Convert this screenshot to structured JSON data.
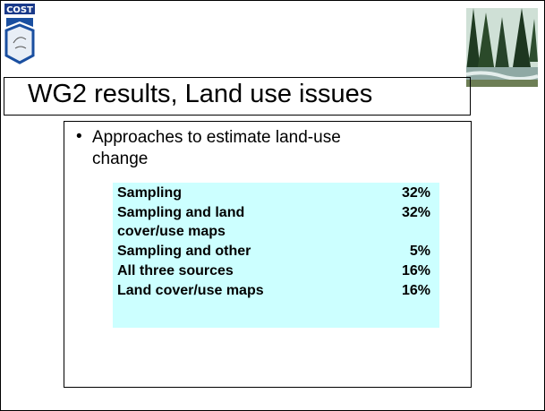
{
  "header": {
    "logo_text": "COST",
    "title": "WG2 results, Land use issues"
  },
  "content": {
    "bullet": "Approaches to estimate land-use change",
    "table": {
      "rows": [
        [
          "Sampling",
          "32%"
        ],
        [
          "Sampling and land cover/use maps",
          "32%"
        ],
        [
          "Sampling and other",
          "5%"
        ],
        [
          "All three sources",
          "16%"
        ],
        [
          "Land cover/use maps",
          "16%"
        ]
      ]
    }
  }
}
